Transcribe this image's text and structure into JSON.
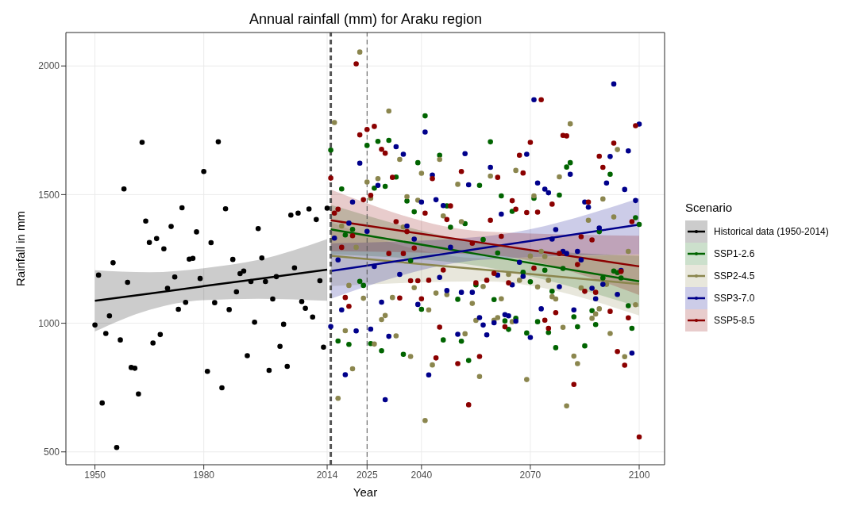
{
  "chart_data": {
    "type": "scatter",
    "title": "Annual rainfall (mm) for Araku region",
    "xlabel": "Year",
    "ylabel": "Rainfall in mm",
    "legend_title": "Scenario",
    "legend": "right",
    "grid": true,
    "marker": "circle",
    "xlim": [
      1942,
      2107
    ],
    "ylim": [
      450,
      2130
    ],
    "xticks": [
      1950,
      1980,
      2014,
      2025,
      2040,
      2070,
      2100
    ],
    "yticks": [
      500,
      1000,
      1500,
      2000
    ],
    "ref_lines": [
      {
        "axis": "x",
        "value": 2015,
        "color": "#555555",
        "line_style": "dashed"
      },
      {
        "axis": "x",
        "value": 2025,
        "color": "#555555",
        "line_style": "dashed"
      }
    ],
    "series": [
      {
        "color": "#000000",
        "x": [
          1950,
          1951,
          1952,
          1953,
          1954,
          1955,
          1956,
          1957,
          1958,
          1959,
          1960,
          1961,
          1962,
          1963,
          1964,
          1965,
          1966,
          1967,
          1968,
          1969,
          1970,
          1971,
          1972,
          1973,
          1974,
          1975,
          1976,
          1977,
          1978,
          1979,
          1980,
          1981,
          1982,
          1983,
          1984,
          1985,
          1986,
          1987,
          1988,
          1989,
          1990,
          1991,
          1992,
          1993,
          1994,
          1995,
          1996,
          1997,
          1998,
          1999,
          2000,
          2001,
          2002,
          2003,
          2004,
          2005,
          2006,
          2007,
          2008,
          2009,
          2010,
          2011,
          2012,
          2013,
          2014
        ],
        "values": [
          993,
          1187,
          690,
          960,
          1029,
          1235,
          517,
          935,
          1522,
          1159,
          828,
          825,
          725,
          1703,
          1397,
          1314,
          923,
          1329,
          956,
          1289,
          1136,
          1376,
          1180,
          1054,
          1449,
          1081,
          1249,
          1252,
          1355,
          1174,
          1590,
          813,
          1313,
          1080,
          1705,
          749,
          1445,
          1053,
          1248,
          1122,
          1193,
          1203,
          874,
          1162,
          1004,
          1368,
          1254,
          1162,
          817,
          1094,
          1181,
          910,
          996,
          832,
          1420,
          1215,
          1428,
          1084,
          1058,
          1444,
          1024,
          1403,
          1165,
          907,
          1447
        ]
      },
      {
        "color": "#006400",
        "x": [
          2015,
          2017,
          2018,
          2019,
          2020,
          2021,
          2023,
          2024,
          2025,
          2026,
          2027,
          2028,
          2029,
          2030,
          2031,
          2033,
          2035,
          2036,
          2037,
          2038,
          2039,
          2040,
          2041,
          2045,
          2046,
          2047,
          2048,
          2050,
          2051,
          2052,
          2053,
          2055,
          2056,
          2057,
          2059,
          2060,
          2061,
          2062,
          2063,
          2064,
          2065,
          2066,
          2068,
          2069,
          2070,
          2071,
          2072,
          2074,
          2075,
          2076,
          2077,
          2078,
          2079,
          2080,
          2081,
          2082,
          2083,
          2085,
          2087,
          2088,
          2089,
          2090,
          2092,
          2093,
          2094,
          2095,
          2097,
          2098,
          2099,
          2100
        ],
        "values": [
          1673,
          931,
          1522,
          1343,
          918,
          1365,
          1163,
          1147,
          1691,
          921,
          1525,
          1707,
          893,
          1532,
          1711,
          1568,
          879,
          1475,
          1243,
          1433,
          1624,
          1054,
          1806,
          1653,
          935,
          1456,
          1373,
          1093,
          930,
          1387,
          855,
          1149,
          1536,
          1325,
          1705,
          1092,
          1273,
          1495,
          1009,
          976,
          1435,
          1019,
          1198,
          962,
          1161,
          1486,
          1006,
          1206,
          964,
          1124,
          905,
          1498,
          1213,
          1607,
          1624,
          1025,
          986,
          912,
          1049,
          995,
          1356,
          1176,
          1579,
          1203,
          1197,
          1176,
          1068,
          980,
          1410,
          1384
        ]
      },
      {
        "color": "#8b864e",
        "x": [
          2016,
          2017,
          2018,
          2019,
          2020,
          2021,
          2022,
          2023,
          2024,
          2025,
          2026,
          2027,
          2028,
          2029,
          2030,
          2031,
          2032,
          2033,
          2034,
          2035,
          2036,
          2037,
          2038,
          2039,
          2040,
          2041,
          2042,
          2043,
          2044,
          2045,
          2046,
          2047,
          2050,
          2051,
          2052,
          2054,
          2055,
          2056,
          2057,
          2059,
          2060,
          2061,
          2062,
          2064,
          2065,
          2066,
          2067,
          2069,
          2070,
          2071,
          2072,
          2073,
          2074,
          2075,
          2076,
          2077,
          2078,
          2079,
          2080,
          2081,
          2082,
          2083,
          2084,
          2086,
          2087,
          2088,
          2089,
          2090,
          2091,
          2092,
          2093,
          2094,
          2096,
          2097,
          2099
        ],
        "values": [
          1780,
          708,
          1378,
          971,
          1147,
          823,
          1295,
          2054,
          1097,
          1549,
          1486,
          919,
          1562,
          1014,
          1030,
          1825,
          1100,
          951,
          1637,
          1374,
          1492,
          871,
          1138,
          1478,
          1583,
          622,
          1052,
          838,
          1117,
          1637,
          1417,
          1111,
          1540,
          1395,
          959,
          1077,
          1011,
          793,
          1143,
          1572,
          1012,
          1022,
          1095,
          1190,
          1006,
          1594,
          1167,
          781,
          1261,
          1495,
          1141,
          1279,
          1259,
          1167,
          1103,
          1094,
          1569,
          984,
          679,
          1775,
          872,
          843,
          1137,
          1400,
          1019,
          1036,
          1056,
          1483,
          1151,
          960,
          1413,
          1675,
          870,
          1279,
          1072
        ]
      },
      {
        "color": "#00008b",
        "x": [
          2015,
          2016,
          2017,
          2018,
          2019,
          2020,
          2021,
          2022,
          2023,
          2025,
          2026,
          2027,
          2028,
          2029,
          2030,
          2031,
          2033,
          2034,
          2035,
          2036,
          2038,
          2039,
          2040,
          2041,
          2042,
          2043,
          2044,
          2045,
          2046,
          2047,
          2048,
          2050,
          2051,
          2052,
          2053,
          2054,
          2056,
          2057,
          2058,
          2059,
          2060,
          2061,
          2062,
          2063,
          2064,
          2065,
          2066,
          2067,
          2068,
          2069,
          2070,
          2071,
          2072,
          2073,
          2074,
          2075,
          2076,
          2077,
          2078,
          2079,
          2080,
          2081,
          2082,
          2083,
          2084,
          2085,
          2086,
          2087,
          2088,
          2089,
          2090,
          2091,
          2092,
          2093,
          2094,
          2095,
          2096,
          2097,
          2098,
          2099,
          2100
        ],
        "values": [
          987,
          1331,
          1246,
          1052,
          800,
          1389,
          1471,
          970,
          1622,
          1357,
          977,
          1221,
          1536,
          1082,
          703,
          949,
          1686,
          1190,
          1657,
          1378,
          1327,
          1073,
          1471,
          1743,
          799,
          1576,
          1480,
          1178,
          1457,
          1127,
          1295,
          957,
          1120,
          1659,
          1538,
          1120,
          1022,
          993,
          955,
          1606,
          1002,
          1187,
          1424,
          1033,
          1029,
          1149,
          1008,
          1237,
          1182,
          1657,
          945,
          1869,
          1545,
          1056,
          1521,
          1507,
          1327,
          1364,
          1142,
          1279,
          1271,
          1579,
          1052,
          1279,
          1246,
          1471,
          1451,
          1136,
          1095,
          1370,
          1151,
          1545,
          1648,
          1930,
          1112,
          1205,
          1520,
          1670,
          884,
          1477,
          1774
        ]
      },
      {
        "color": "#8b0000",
        "x": [
          2015,
          2016,
          2017,
          2018,
          2019,
          2020,
          2021,
          2022,
          2023,
          2024,
          2025,
          2026,
          2027,
          2029,
          2030,
          2031,
          2032,
          2033,
          2034,
          2035,
          2036,
          2037,
          2038,
          2039,
          2040,
          2041,
          2042,
          2043,
          2044,
          2045,
          2046,
          2047,
          2048,
          2050,
          2051,
          2053,
          2054,
          2055,
          2056,
          2058,
          2059,
          2060,
          2061,
          2062,
          2063,
          2064,
          2065,
          2066,
          2067,
          2068,
          2069,
          2070,
          2071,
          2072,
          2073,
          2074,
          2075,
          2076,
          2077,
          2078,
          2079,
          2080,
          2082,
          2083,
          2084,
          2085,
          2086,
          2087,
          2088,
          2089,
          2090,
          2092,
          2093,
          2094,
          2095,
          2096,
          2097,
          2098,
          2099,
          2100
        ],
        "values": [
          1564,
          1428,
          1443,
          1295,
          1100,
          1066,
          1340,
          2008,
          1732,
          1480,
          1753,
          1497,
          1765,
          1676,
          1661,
          1271,
          1567,
          1395,
          1098,
          1271,
          1356,
          1165,
          1292,
          1165,
          1095,
          1428,
          1167,
          1562,
          865,
          985,
          1207,
          1403,
          1456,
          843,
          1590,
          683,
          1311,
          1157,
          871,
          1167,
          1400,
          1194,
          1567,
          1338,
          986,
          1157,
          1476,
          1443,
          1653,
          1584,
          1430,
          1703,
          1214,
          1432,
          1869,
          1012,
          980,
          1463,
          1041,
          1271,
          1730,
          1728,
          762,
          1228,
          1336,
          1124,
          1471,
          1324,
          1120,
          1649,
          1606,
          1046,
          1700,
          890,
          1201,
          837,
          1021,
          1395,
          1768,
          558
        ]
      },
      {
        "type": "line",
        "marker": "none",
        "name": "Historical data (1950-2014)",
        "color": "#000000",
        "x": [
          1950,
          1965,
          1980,
          1995,
          2014
        ],
        "values": [
          1087,
          1115,
          1144,
          1172,
          1208
        ],
        "lower": [
          968,
          1052,
          1090,
          1095,
          1087
        ],
        "upper": [
          1206,
          1198,
          1214,
          1246,
          1327
        ]
      },
      {
        "type": "line",
        "marker": "none",
        "name": "SSP1-2.6",
        "color": "#006400",
        "x": [
          2015,
          2057,
          2100
        ],
        "values": [
          1365,
          1265,
          1163
        ],
        "lower": [
          1268,
          1220,
          1063
        ],
        "upper": [
          1460,
          1310,
          1262
        ]
      },
      {
        "type": "line",
        "marker": "none",
        "name": "SSP2-4.5",
        "color": "#8b864e",
        "x": [
          2015,
          2057,
          2100
        ],
        "values": [
          1262,
          1208,
          1152
        ],
        "lower": [
          1144,
          1163,
          1030
        ],
        "upper": [
          1392,
          1253,
          1268
        ]
      },
      {
        "type": "line",
        "marker": "none",
        "name": "SSP3-7.0",
        "color": "#00008b",
        "x": [
          2015,
          2057,
          2100
        ],
        "values": [
          1203,
          1292,
          1383
        ],
        "lower": [
          1095,
          1247,
          1268
        ],
        "upper": [
          1311,
          1337,
          1486
        ]
      },
      {
        "type": "line",
        "marker": "none",
        "name": "SSP5-8.5",
        "color": "#8b0000",
        "x": [
          2015,
          2057,
          2100
        ],
        "values": [
          1400,
          1312,
          1221
        ],
        "lower": [
          1280,
          1267,
          1110
        ],
        "upper": [
          1520,
          1357,
          1340
        ]
      }
    ]
  }
}
